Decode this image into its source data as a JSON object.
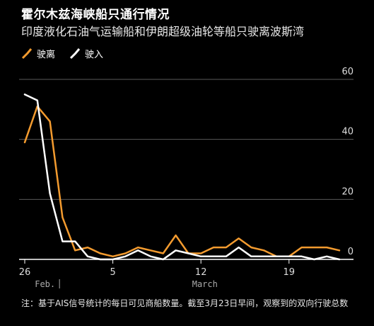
{
  "header": {
    "title": "霍尔木兹海峡船只通行情况",
    "subtitle": "印度液化石油气运输船和伊朗超级油轮等船只驶离波斯湾"
  },
  "legend": [
    {
      "label": "驶离",
      "color": "#f39b2f"
    },
    {
      "label": "驶入",
      "color": "#ffffff"
    }
  ],
  "note": "注：基于AIS信号统计的每日可见商船数量。截至3月23日早间，观察到的双向行驶总数",
  "chart_data": {
    "type": "line",
    "title": "霍尔木兹海峡船只通行情况",
    "subtitle": "印度液化石油气运输船和伊朗超级油轮等船只驶离波斯湾",
    "x_ticks": [
      {
        "day": 0,
        "label": "26"
      },
      {
        "day": 7,
        "label": "5"
      },
      {
        "day": 14,
        "label": "12"
      },
      {
        "day": 21,
        "label": "19"
      }
    ],
    "month_labels": [
      {
        "day": 0.8,
        "label": "Feb.",
        "sep": true
      },
      {
        "day": 13.3,
        "label": "March",
        "sep": false
      }
    ],
    "ylim": [
      0,
      60
    ],
    "y_ticks": [
      0,
      20,
      40,
      60
    ],
    "x": [
      0,
      1,
      2,
      3,
      4,
      5,
      6,
      7,
      8,
      9,
      10,
      11,
      12,
      13,
      14,
      15,
      16,
      17,
      18,
      19,
      20,
      21,
      22,
      23,
      24,
      25
    ],
    "series": [
      {
        "name": "驶离",
        "color": "#f39b2f",
        "values": [
          39,
          51,
          46,
          14,
          3,
          4,
          2,
          1,
          2,
          4,
          3,
          2,
          8,
          2,
          2,
          4,
          4,
          7,
          4,
          3,
          1,
          1,
          4,
          4,
          4,
          3
        ]
      },
      {
        "name": "驶入",
        "color": "#ffffff",
        "values": [
          55,
          53,
          22,
          6,
          6,
          1,
          0,
          0,
          1,
          3,
          1,
          0,
          3,
          2,
          1,
          1,
          1,
          4,
          1,
          1,
          1,
          1,
          1,
          0,
          1,
          0
        ]
      }
    ],
    "grid": true,
    "legend_position": "top-left"
  }
}
